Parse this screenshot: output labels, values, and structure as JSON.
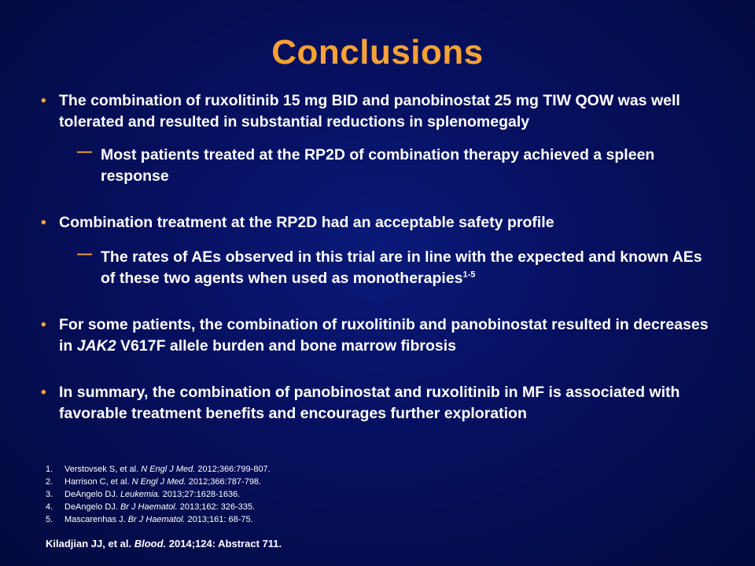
{
  "title": "Conclusions",
  "bullets": [
    {
      "text_a": "The combination of ruxolitinib 15 mg BID  and panobinostat 25 mg TIW QOW was well tolerated and resulted in substantial reductions in splenomegaly"
    },
    {
      "text_a": "Combination treatment at the RP2D had an acceptable safety profile"
    },
    {
      "text_a": "For some patients, the combination of ruxolitinib and panobinostat resulted in decreases in ",
      "italic": "JAK2",
      "text_b": " V617F allele burden and bone marrow fibrosis"
    },
    {
      "text_a": "In summary,  the combination of panobinostat and ruxolitinib in MF is associated with favorable treatment benefits and encourages further exploration"
    }
  ],
  "subbullets": [
    {
      "text": "Most patients treated at the RP2D of combination therapy achieved a spleen response"
    },
    {
      "text": "The rates of AEs observed in this trial are in line with the expected and known AEs of these two agents when used as monotherapies",
      "sup": "1-5"
    }
  ],
  "bullet_marker": "•",
  "dash_marker": "—",
  "references": [
    {
      "num": "1.",
      "pre": "Verstovsek S, et al. ",
      "journal": "N Engl J Med.",
      "post": " 2012;366:799-807."
    },
    {
      "num": "2.",
      "pre": "Harrison C, et al. ",
      "journal": "N Engl J Med.",
      "post": " 2012;366:787-798."
    },
    {
      "num": "3.",
      "pre": "DeAngelo DJ. ",
      "journal": "Leukemia.",
      "post": " 2013;27:1628-1636."
    },
    {
      "num": "4.",
      "pre": "DeAngelo DJ. ",
      "journal": "Br J Haematol.",
      "post": " 2013;162: 326-335."
    },
    {
      "num": "5.",
      "pre": "Mascarenhas J. ",
      "journal": "Br J Haematol.",
      "post": " 2013;161: 68-75."
    }
  ],
  "source": {
    "pre": "Kiladjian JJ, et al. ",
    "journal": "Blood.",
    "post": " 2014;124: Abstract 711."
  },
  "colors": {
    "accent": "#f7a234",
    "text": "#ffffff",
    "background": "#061060"
  }
}
